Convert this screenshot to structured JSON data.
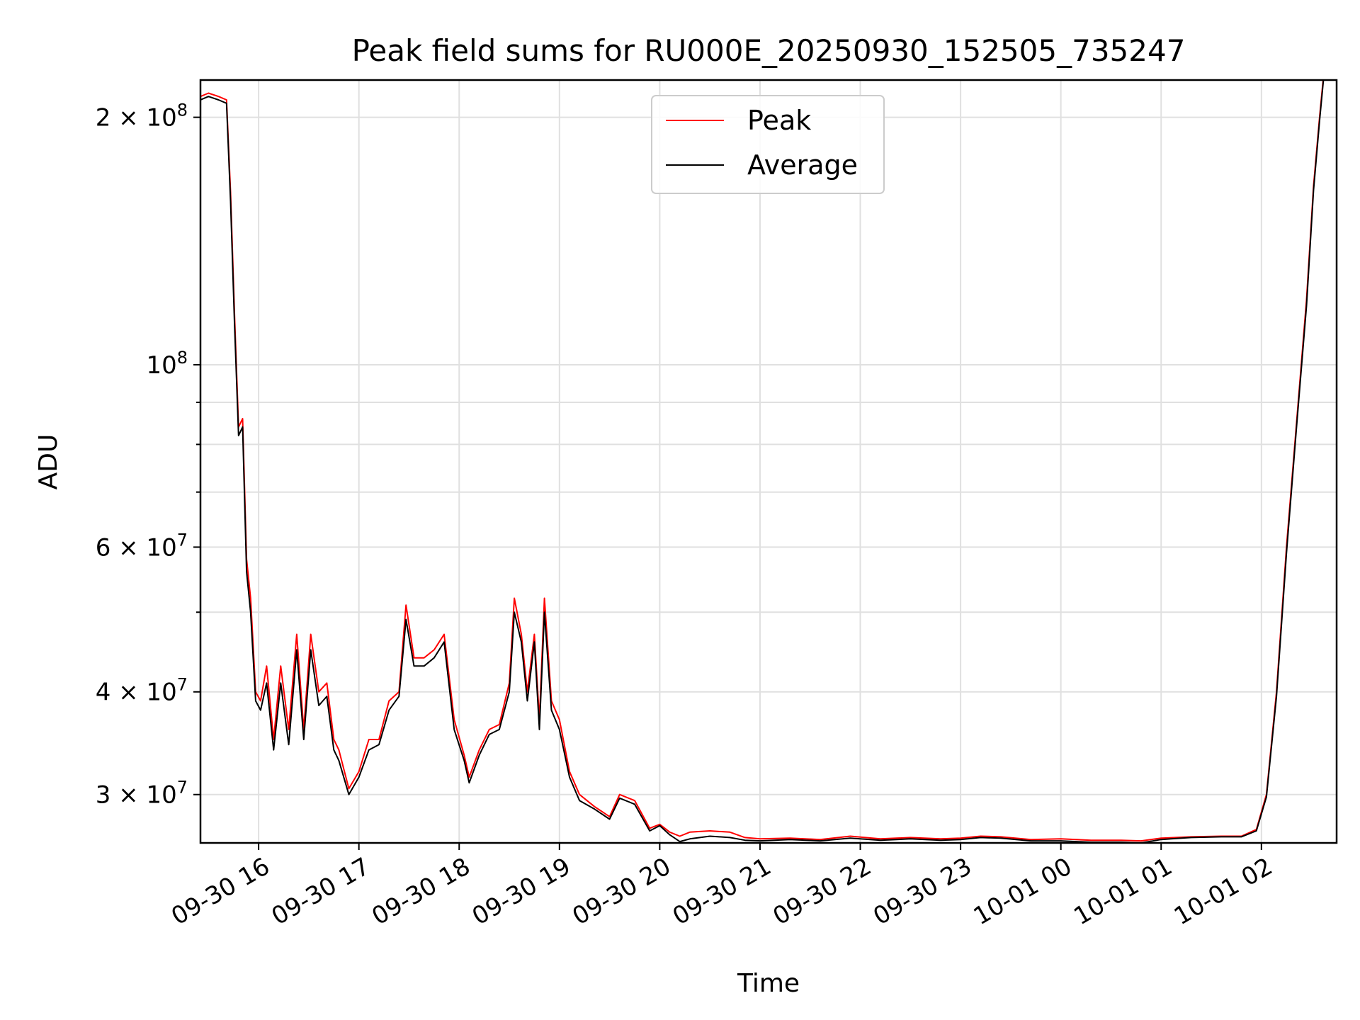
{
  "chart_data": {
    "type": "line",
    "title": "Peak field sums for RU000E_20250930_152505_735247",
    "xlabel": "Time",
    "ylabel": "ADU",
    "yscale": "log",
    "xlim": [
      15.42,
      26.75
    ],
    "ylim": [
      26200000,
      222000000
    ],
    "x_ticks": [
      {
        "value": 16,
        "label": "09-30 16"
      },
      {
        "value": 17,
        "label": "09-30 17"
      },
      {
        "value": 18,
        "label": "09-30 18"
      },
      {
        "value": 19,
        "label": "09-30 19"
      },
      {
        "value": 20,
        "label": "09-30 20"
      },
      {
        "value": 21,
        "label": "09-30 21"
      },
      {
        "value": 22,
        "label": "09-30 22"
      },
      {
        "value": 23,
        "label": "09-30 23"
      },
      {
        "value": 24,
        "label": "10-01 00"
      },
      {
        "value": 25,
        "label": "10-01 01"
      },
      {
        "value": 26,
        "label": "10-01 02"
      }
    ],
    "y_ticks_major": [
      {
        "value": 200000000,
        "base": "2 × 10",
        "exp": "8"
      },
      {
        "value": 100000000,
        "base": "10",
        "exp": "8"
      },
      {
        "value": 60000000,
        "base": "6 × 10",
        "exp": "7"
      },
      {
        "value": 40000000,
        "base": "4 × 10",
        "exp": "7"
      },
      {
        "value": 30000000,
        "base": "3 × 10",
        "exp": "7"
      }
    ],
    "y_ticks_minor": [
      90000000,
      80000000,
      70000000,
      50000000
    ],
    "legend": {
      "position": "upper center",
      "entries": [
        "Peak",
        "Average"
      ]
    },
    "grid": true,
    "series": [
      {
        "name": "Peak",
        "color": "#ff0000",
        "x": [
          15.42,
          15.5,
          15.6,
          15.68,
          15.72,
          15.76,
          15.8,
          15.84,
          15.88,
          15.92,
          15.97,
          16.02,
          16.08,
          16.15,
          16.22,
          16.3,
          16.38,
          16.45,
          16.52,
          16.6,
          16.68,
          16.75,
          16.8,
          16.9,
          17.0,
          17.1,
          17.2,
          17.3,
          17.4,
          17.47,
          17.55,
          17.65,
          17.75,
          17.85,
          17.95,
          18.05,
          18.1,
          18.2,
          18.3,
          18.4,
          18.5,
          18.55,
          18.62,
          18.68,
          18.75,
          18.8,
          18.85,
          18.92,
          19.0,
          19.1,
          19.2,
          19.35,
          19.5,
          19.6,
          19.75,
          19.9,
          20.0,
          20.1,
          20.2,
          20.3,
          20.5,
          20.7,
          20.85,
          21.0,
          21.3,
          21.6,
          21.9,
          22.2,
          22.5,
          22.8,
          23.0,
          23.2,
          23.4,
          23.7,
          24.0,
          24.3,
          24.6,
          24.8,
          25.0,
          25.3,
          25.6,
          25.8,
          25.95,
          26.05,
          26.15,
          26.25,
          26.35,
          26.45,
          26.52,
          26.58,
          26.62
        ],
        "y": [
          212000000,
          214000000,
          212000000,
          210000000,
          162000000,
          115000000,
          84000000,
          86000000,
          58000000,
          52000000,
          40000000,
          39000000,
          43000000,
          35000000,
          43000000,
          36000000,
          47000000,
          36000000,
          47000000,
          40000000,
          41000000,
          35000000,
          34000000,
          30500000,
          32000000,
          35000000,
          35000000,
          39000000,
          40000000,
          51000000,
          44000000,
          44000000,
          45000000,
          47000000,
          37000000,
          33500000,
          31500000,
          34000000,
          36000000,
          36500000,
          41000000,
          52000000,
          47000000,
          40000000,
          47000000,
          37000000,
          52000000,
          39000000,
          37000000,
          32000000,
          30000000,
          29000000,
          28200000,
          30000000,
          29500000,
          27300000,
          27600000,
          27000000,
          26700000,
          27000000,
          27100000,
          27000000,
          26600000,
          26500000,
          26550000,
          26450000,
          26700000,
          26500000,
          26600000,
          26500000,
          26550000,
          26700000,
          26650000,
          26450000,
          26500000,
          26400000,
          26400000,
          26350000,
          26550000,
          26650000,
          26700000,
          26700000,
          27200000,
          30000000,
          40000000,
          60000000,
          85000000,
          120000000,
          165000000,
          200000000,
          225000000
        ]
      },
      {
        "name": "Average",
        "color": "#000000",
        "x": [
          15.42,
          15.5,
          15.6,
          15.68,
          15.72,
          15.76,
          15.8,
          15.84,
          15.88,
          15.92,
          15.97,
          16.02,
          16.08,
          16.15,
          16.22,
          16.3,
          16.38,
          16.45,
          16.52,
          16.6,
          16.68,
          16.75,
          16.8,
          16.9,
          17.0,
          17.1,
          17.2,
          17.3,
          17.4,
          17.47,
          17.55,
          17.65,
          17.75,
          17.85,
          17.95,
          18.05,
          18.1,
          18.2,
          18.3,
          18.4,
          18.5,
          18.55,
          18.62,
          18.68,
          18.75,
          18.8,
          18.85,
          18.92,
          19.0,
          19.1,
          19.2,
          19.35,
          19.5,
          19.6,
          19.75,
          19.9,
          20.0,
          20.1,
          20.2,
          20.3,
          20.5,
          20.7,
          20.85,
          21.0,
          21.3,
          21.6,
          21.9,
          22.2,
          22.5,
          22.8,
          23.0,
          23.2,
          23.4,
          23.7,
          24.0,
          24.3,
          24.6,
          24.8,
          25.0,
          25.3,
          25.6,
          25.8,
          25.95,
          26.05,
          26.15,
          26.25,
          26.35,
          26.45,
          26.52,
          26.58,
          26.62
        ],
        "y": [
          210000000,
          212000000,
          210000000,
          208000000,
          158000000,
          112000000,
          82000000,
          84000000,
          56000000,
          50000000,
          39000000,
          38000000,
          41000000,
          34000000,
          41000000,
          34500000,
          45000000,
          35000000,
          45000000,
          38500000,
          39500000,
          34000000,
          33000000,
          30000000,
          31500000,
          34000000,
          34500000,
          38000000,
          39500000,
          49000000,
          43000000,
          43000000,
          44000000,
          46000000,
          36000000,
          33000000,
          31000000,
          33500000,
          35500000,
          36000000,
          40000000,
          50000000,
          46000000,
          39000000,
          46000000,
          36000000,
          50000000,
          38000000,
          36000000,
          31500000,
          29500000,
          28800000,
          28000000,
          29700000,
          29200000,
          27100000,
          27500000,
          26800000,
          26300000,
          26500000,
          26700000,
          26600000,
          26400000,
          26350000,
          26450000,
          26350000,
          26550000,
          26400000,
          26500000,
          26400000,
          26450000,
          26600000,
          26550000,
          26350000,
          26350000,
          26250000,
          26250000,
          26200000,
          26450000,
          26600000,
          26650000,
          26650000,
          27100000,
          29800000,
          39500000,
          59000000,
          84000000,
          118000000,
          163000000,
          198000000,
          223000000
        ]
      }
    ]
  }
}
